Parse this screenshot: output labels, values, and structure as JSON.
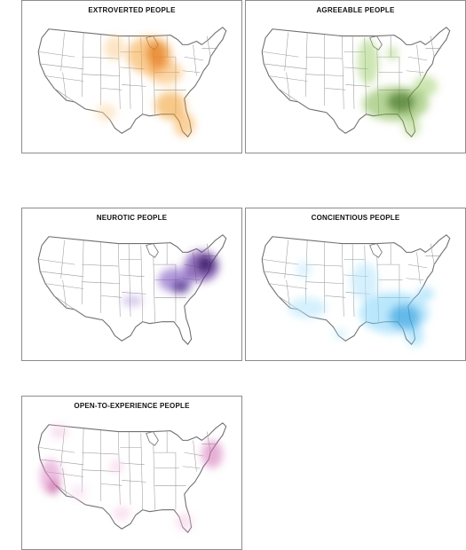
{
  "panels": [
    {
      "id": "extroverted",
      "title": "EXTROVERTED PEOPLE",
      "accent": "#f0a030"
    },
    {
      "id": "agreeable",
      "title": "AGREEABLE PEOPLE",
      "accent": "#7cb342"
    },
    {
      "id": "neurotic",
      "title": "NEUROTIC PEOPLE",
      "accent": "#5b2c91"
    },
    {
      "id": "conscientious",
      "title": "CONCIENTIOUS PEOPLE",
      "accent": "#36a7e0"
    },
    {
      "id": "open",
      "title": "OPEN-TO-EXPERIENCE PEOPLE",
      "accent": "#d46fb4"
    }
  ]
}
